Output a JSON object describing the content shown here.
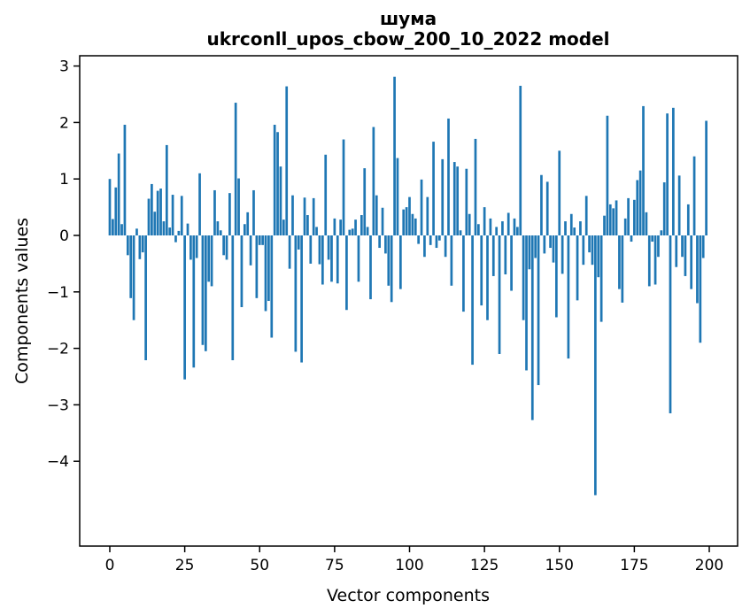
{
  "title": {
    "line1": "шума",
    "line2": "ukrconll_upos_cbow_200_10_2022 model"
  },
  "axes": {
    "xlabel": "Vector components",
    "ylabel": "Components values"
  },
  "colors": {
    "bar": "#1f77b4",
    "text": "#000000",
    "spine": "#000000",
    "background": "#ffffff"
  },
  "chart_data": {
    "type": "bar",
    "title": "шума",
    "subtitle": "ukrconll_upos_cbow_200_10_2022 model",
    "xlabel": "Vector components",
    "ylabel": "Components values",
    "bar_color": "#1f77b4",
    "grid": false,
    "legend_position": "none",
    "xlim": [
      -10.35,
      209.35
    ],
    "ylim": [
      -5.5,
      3.18
    ],
    "xticks": [
      0,
      25,
      50,
      75,
      100,
      125,
      150,
      175,
      200
    ],
    "yticks": [
      3,
      2,
      1,
      0,
      -1,
      -2,
      -3,
      -4
    ],
    "n_bars": 200,
    "values": [
      1.0,
      0.29,
      0.85,
      1.45,
      0.2,
      1.96,
      -0.35,
      -1.11,
      -1.5,
      0.12,
      -0.42,
      -0.3,
      -2.21,
      0.65,
      0.91,
      0.42,
      0.79,
      0.83,
      0.25,
      1.6,
      0.14,
      0.72,
      -0.12,
      0.08,
      0.7,
      -2.55,
      0.21,
      -0.43,
      -2.34,
      -0.4,
      1.1,
      -1.94,
      -2.05,
      -0.82,
      -0.9,
      0.8,
      0.25,
      0.09,
      -0.35,
      -0.43,
      0.75,
      -2.21,
      2.35,
      1.01,
      -1.27,
      0.2,
      0.41,
      -0.53,
      0.8,
      -1.11,
      -0.17,
      -0.17,
      -1.34,
      -1.16,
      -1.81,
      1.96,
      1.83,
      1.22,
      0.28,
      2.64,
      -0.59,
      0.71,
      -2.06,
      -0.25,
      -2.25,
      0.67,
      0.36,
      -0.5,
      0.66,
      0.15,
      -0.51,
      -0.87,
      1.43,
      -0.43,
      -0.82,
      0.3,
      -0.85,
      0.28,
      1.7,
      -1.32,
      0.1,
      0.12,
      0.28,
      -0.82,
      0.36,
      1.19,
      0.15,
      -1.13,
      1.92,
      0.71,
      -0.22,
      0.49,
      -0.32,
      -0.89,
      -1.18,
      2.81,
      1.37,
      -0.95,
      0.46,
      0.5,
      0.68,
      0.38,
      0.3,
      -0.15,
      0.99,
      -0.38,
      0.68,
      -0.17,
      1.66,
      -0.22,
      -0.09,
      1.35,
      -0.38,
      2.07,
      -0.89,
      1.3,
      1.22,
      0.09,
      -1.35,
      1.18,
      0.38,
      -2.29,
      1.71,
      0.2,
      -1.24,
      0.5,
      -1.5,
      0.3,
      -0.72,
      0.15,
      -2.1,
      0.25,
      -0.69,
      0.4,
      -0.98,
      0.3,
      0.15,
      2.65,
      -1.5,
      -2.39,
      -0.6,
      -3.27,
      -0.4,
      -2.65,
      1.07,
      -0.32,
      0.95,
      -0.22,
      -0.48,
      -1.45,
      1.5,
      -0.68,
      0.25,
      -2.18,
      0.38,
      0.14,
      -1.15,
      0.25,
      -0.52,
      0.7,
      -0.3,
      -0.52,
      -4.6,
      -0.74,
      -1.53,
      0.35,
      2.12,
      0.55,
      0.48,
      0.62,
      -0.95,
      -1.19,
      0.3,
      0.66,
      -0.11,
      0.63,
      0.98,
      1.15,
      2.29,
      0.41,
      -0.9,
      -0.11,
      -0.87,
      -0.38,
      0.09,
      0.94,
      2.16,
      -3.15,
      2.26,
      -0.56,
      1.06,
      -0.38,
      -0.72,
      0.55,
      -0.95,
      1.4,
      -1.2,
      -1.9,
      -0.4,
      2.03
    ]
  }
}
